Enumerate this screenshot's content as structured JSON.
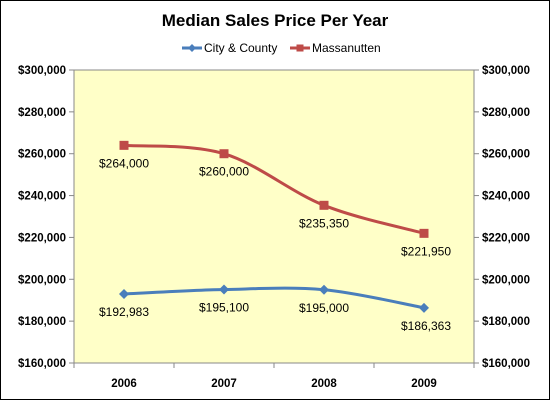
{
  "chart_data": {
    "type": "line",
    "title": "Median Sales Price Per Year",
    "categories": [
      "2006",
      "2007",
      "2008",
      "2009"
    ],
    "ylim": [
      160000,
      300000
    ],
    "ytick_step": 20000,
    "y_tick_labels": [
      "$160,000",
      "$180,000",
      "$200,000",
      "$220,000",
      "$240,000",
      "$260,000",
      "$280,000",
      "$300,000"
    ],
    "grid": false,
    "legend_position": "top-center",
    "plot_background": "#FFFFC8",
    "series": [
      {
        "name": "City & County",
        "color": "#4A7EBB",
        "marker": "diamond",
        "values": [
          192983,
          195100,
          195000,
          186363
        ],
        "labels": [
          "$192,983",
          "$195,100",
          "$195,000",
          "$186,363"
        ]
      },
      {
        "name": "Massanutten",
        "color": "#BE4B48",
        "marker": "square",
        "values": [
          264000,
          260000,
          235350,
          221950
        ],
        "labels": [
          "$264,000",
          "$260,000",
          "$235,350",
          "$221,950"
        ]
      }
    ]
  }
}
